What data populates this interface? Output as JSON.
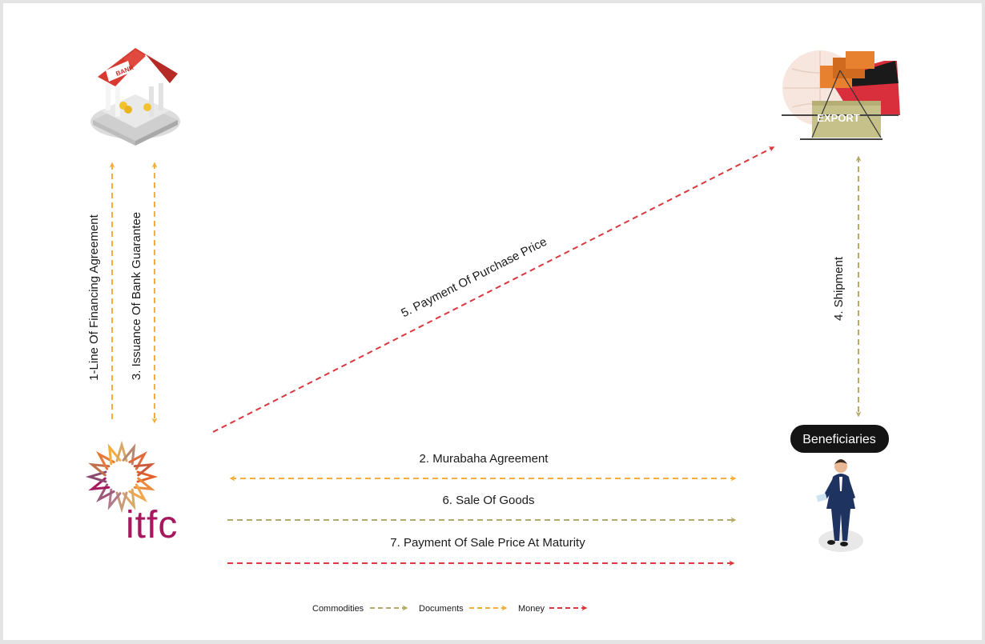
{
  "logo": {
    "text": "itfc"
  },
  "export_sign": "EXPORT",
  "bank_sign": "BANK",
  "beneficiaries_label": "Beneficiaries",
  "flows": {
    "f1": "1-Line Of Financing Agreement",
    "f3": "3. Issuance Of Bank Guarantee",
    "f5": "5. Payment Of Purchase Price",
    "f4": "4. Shipment",
    "f2": "2. Murabaha Agreement",
    "f6": "6. Sale Of Goods",
    "f7": "7. Payment Of Sale Price At Maturity"
  },
  "legend": {
    "commodities": "Commodities",
    "documents": "Documents",
    "money": "Money"
  },
  "colors": {
    "commodities": "#b5a96a",
    "documents": "#f2ad3d",
    "money": "#d9383f",
    "logo_text": "#a6195e"
  }
}
